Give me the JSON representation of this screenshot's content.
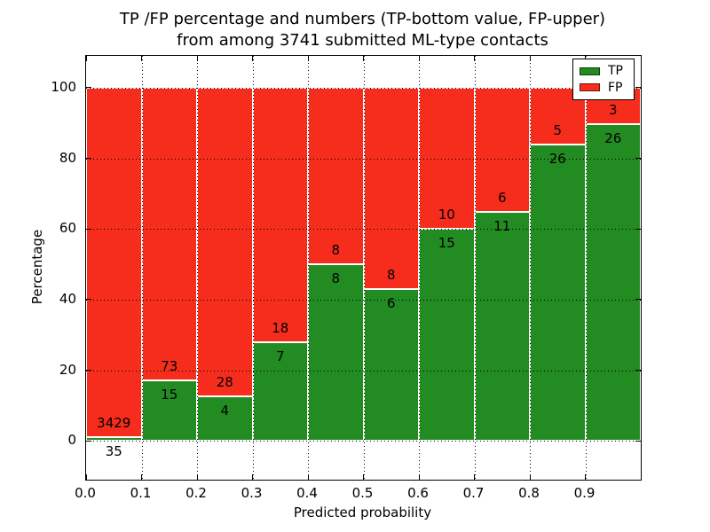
{
  "title": {
    "line1": "TP /FP percentage and numbers (TP-bottom value, FP-upper)",
    "line2": "from among 3741 submitted ML-type contacts"
  },
  "axes": {
    "xlabel": "Predicted probability",
    "ylabel": "Percentage",
    "xtick_labels": [
      "0.0",
      "0.1",
      "0.2",
      "0.3",
      "0.4",
      "0.5",
      "0.6",
      "0.7",
      "0.8",
      "0.9"
    ],
    "ytick_labels": [
      "0",
      "20",
      "40",
      "60",
      "80",
      "100"
    ]
  },
  "legend": {
    "entries": [
      {
        "label": "TP",
        "color": "#228b22"
      },
      {
        "label": "FP",
        "color": "#f62d1d"
      }
    ]
  },
  "chart_data": {
    "type": "bar",
    "stacked": true,
    "normalized": "percent",
    "title": "TP /FP percentage and numbers (TP-bottom value, FP-upper)\nfrom among 3741 submitted ML-type contacts",
    "xlabel": "Predicted probability",
    "ylabel": "Percentage",
    "total_contacts": 3741,
    "bin_width": 0.1,
    "bin_starts": [
      0.0,
      0.1,
      0.2,
      0.3,
      0.4,
      0.5,
      0.6,
      0.7,
      0.8,
      0.9
    ],
    "series": [
      {
        "name": "TP",
        "color": "#228b22",
        "counts": [
          35,
          15,
          4,
          7,
          8,
          6,
          15,
          11,
          26,
          26
        ]
      },
      {
        "name": "FP",
        "color": "#f62d1d",
        "counts": [
          3429,
          73,
          28,
          18,
          8,
          8,
          10,
          6,
          5,
          3
        ]
      }
    ],
    "tp_percent_approx": [
      1.01,
      17.05,
      12.5,
      28.0,
      50.0,
      42.86,
      60.0,
      64.71,
      83.87,
      89.66
    ],
    "xticks": [
      0.0,
      0.1,
      0.2,
      0.3,
      0.4,
      0.5,
      0.6,
      0.7,
      0.8,
      0.9
    ],
    "yticks": [
      0,
      20,
      40,
      60,
      80,
      100
    ],
    "xlim": [
      0.0,
      1.0
    ],
    "ylim": [
      -11,
      109
    ],
    "grid": "dotted",
    "bar_edge_color": "#ffffff",
    "legend_position": "upper right"
  }
}
